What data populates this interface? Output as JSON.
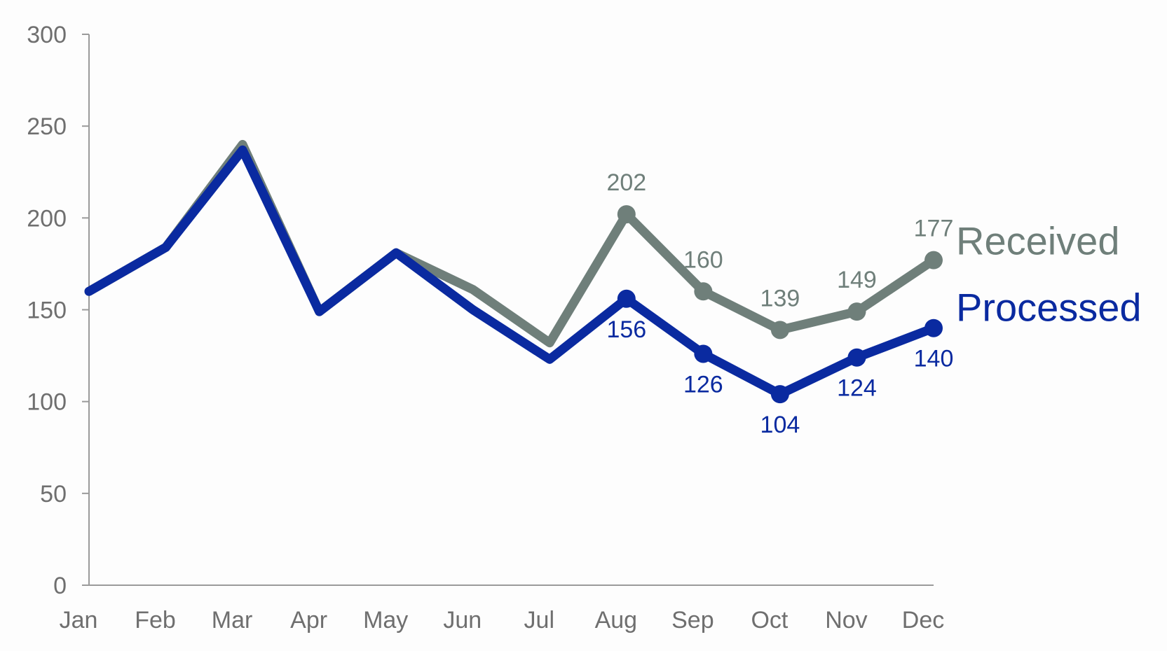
{
  "chart_data": {
    "type": "line",
    "title": "",
    "xlabel": "",
    "ylabel": "",
    "ylim": [
      0,
      300
    ],
    "yticks": [
      0,
      50,
      100,
      150,
      200,
      250,
      300
    ],
    "grid": false,
    "legend": "inline-right",
    "categories": [
      "Jan",
      "Feb",
      "Mar",
      "Apr",
      "May",
      "Jun",
      "Jul",
      "Aug",
      "Sep",
      "Oct",
      "Nov",
      "Dec"
    ],
    "series": [
      {
        "name": "Received",
        "color": "#6f7f7a",
        "values": [
          160,
          184,
          240,
          149,
          181,
          161,
          132,
          202,
          160,
          139,
          149,
          177
        ],
        "labeled_from_index": 7
      },
      {
        "name": "Processed",
        "color": "#0a2aa0",
        "values": [
          160,
          184,
          237,
          149,
          181,
          150,
          123,
          156,
          126,
          104,
          124,
          140
        ],
        "labeled_from_index": 7
      }
    ]
  }
}
